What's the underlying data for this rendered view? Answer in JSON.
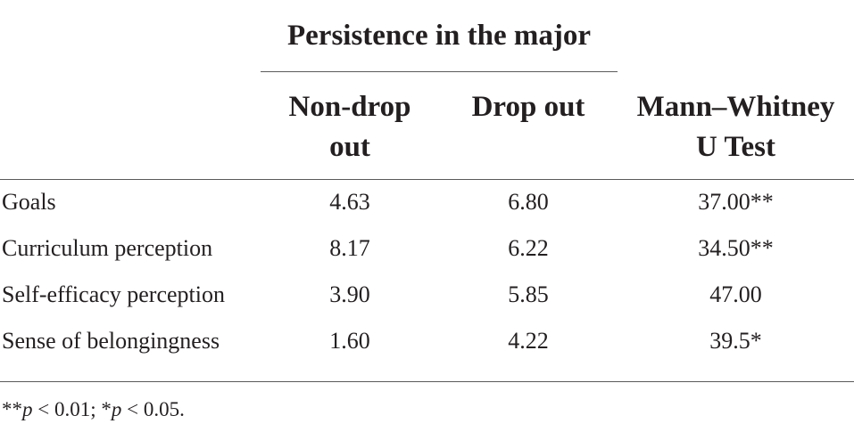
{
  "table": {
    "group_header": "Persistence in the major",
    "columns": [
      {
        "lines": [
          "Non-drop",
          "out"
        ]
      },
      {
        "lines": [
          "Drop out"
        ]
      },
      {
        "lines": [
          "Mann–Whitney",
          "U Test"
        ]
      }
    ],
    "rows": [
      {
        "label": "Goals",
        "non_drop_out": "4.63",
        "drop_out": "6.80",
        "mann_whitney": "37.00**"
      },
      {
        "label": "Curriculum perception",
        "non_drop_out": "8.17",
        "drop_out": "6.22",
        "mann_whitney": "34.50**"
      },
      {
        "label": "Self-efficacy perception",
        "non_drop_out": "3.90",
        "drop_out": "5.85",
        "mann_whitney": "47.00"
      },
      {
        "label": "Sense of belongingness",
        "non_drop_out": "1.60",
        "drop_out": "4.22",
        "mann_whitney": "39.5*"
      }
    ],
    "footnote": {
      "part1": "**",
      "p1": "p",
      "part2": " < 0.01; *",
      "p2": "p",
      "part3": " < 0.05."
    }
  }
}
